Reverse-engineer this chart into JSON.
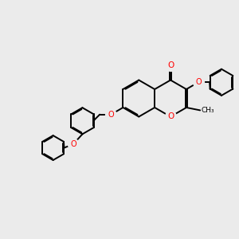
{
  "bg_color": "#ebebeb",
  "bond_color": "#000000",
  "oxygen_color": "#ff0000",
  "line_width": 1.4,
  "dbo": 0.055,
  "figsize": [
    3.0,
    3.0
  ],
  "dpi": 100,
  "xlim": [
    0,
    10
  ],
  "ylim": [
    0,
    10
  ]
}
